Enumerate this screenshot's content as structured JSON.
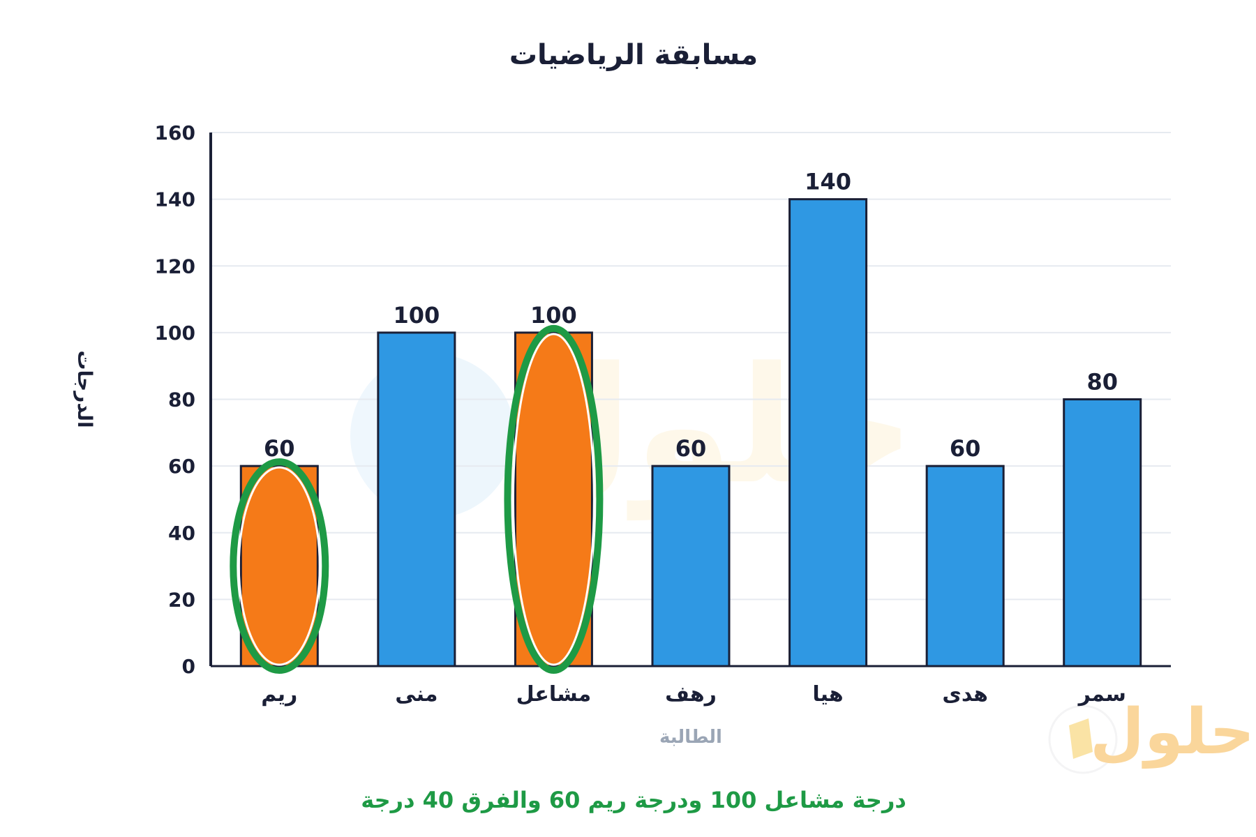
{
  "chart_data": {
    "type": "bar",
    "title": "مسابقة الرياضيات",
    "xlabel": "الطالبة",
    "ylabel": "الدرجات",
    "categories": [
      "ريم",
      "منى",
      "مشاعل",
      "رهف",
      "هيا",
      "هدى",
      "سمر"
    ],
    "values": [
      60,
      100,
      100,
      60,
      140,
      60,
      80
    ],
    "data_labels": [
      "60",
      "100",
      "100",
      "60",
      "140",
      "60",
      "80"
    ],
    "highlighted": [
      "ريم",
      "مشاعل"
    ],
    "ylim": [
      0,
      160
    ],
    "yticks": [
      0,
      20,
      40,
      60,
      80,
      100,
      120,
      140,
      160
    ],
    "ytick_labels": [
      "0",
      "20",
      "40",
      "60",
      "80",
      "100",
      "120",
      "140",
      "160"
    ],
    "grid": true,
    "legend": "none"
  },
  "note": {
    "parts": [
      "درجة مشاعل ",
      "100",
      " ودرجة ريم ",
      "60",
      " والفرق ",
      "40",
      " درجة"
    ]
  },
  "watermark": {
    "text": "حلول"
  },
  "colors": {
    "bar": "#2f98e3",
    "highlight_bar": "#f57a18",
    "highlight_ring": "#1e9a45",
    "bar_outline": "#1a1f36",
    "grid": "#e6eaf0",
    "axis": "#1a1f36",
    "note": "#1e9a45",
    "xlabel": "#9aa5b5"
  },
  "icons": {
    "watermark": "halool-logo-icon"
  }
}
